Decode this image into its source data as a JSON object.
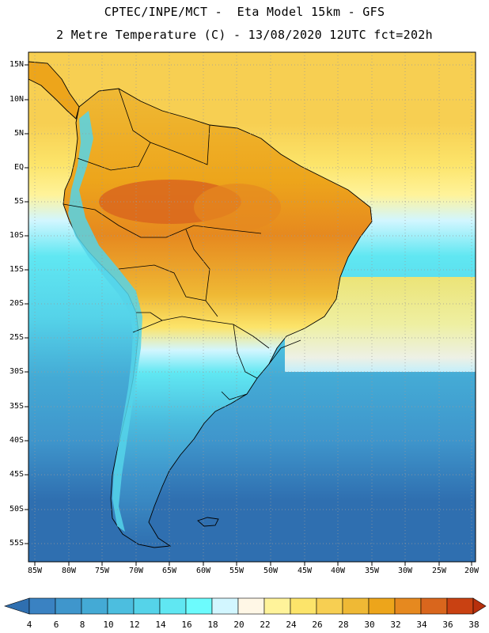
{
  "header": {
    "line1": "CPTEC/INPE/MCT -  Eta Model 15km - GFS",
    "line2": "2 Metre Temperature (C) - 13/08/2020 12UTC fct=202h"
  },
  "axes": {
    "lat_labels": [
      "15N",
      "10N",
      "5N",
      "EQ",
      "5S",
      "10S",
      "15S",
      "20S",
      "25S",
      "30S",
      "35S",
      "40S",
      "45S",
      "50S",
      "55S"
    ],
    "lon_labels": [
      "85W",
      "80W",
      "75W",
      "70W",
      "65W",
      "60W",
      "55W",
      "50W",
      "45W",
      "40W",
      "35W",
      "30W",
      "25W",
      "20W"
    ]
  },
  "colorbar": {
    "labels": [
      "4",
      "6",
      "8",
      "10",
      "12",
      "14",
      "16",
      "18",
      "20",
      "22",
      "24",
      "26",
      "28",
      "30",
      "32",
      "34",
      "36",
      "38"
    ],
    "colors": [
      "#2f6fb0",
      "#3a82c2",
      "#3f96cc",
      "#44aad5",
      "#4cbedf",
      "#55d3e9",
      "#60e7f2",
      "#6cfbfd",
      "#d2f6ff",
      "#fff7e6",
      "#fff39a",
      "#fce46a",
      "#f7cf52",
      "#efb935",
      "#eda51b",
      "#e6891f",
      "#d9661d",
      "#c94112",
      "#b7300c"
    ]
  },
  "map_data": {
    "region": "South America",
    "lat_range": [
      -57,
      17
    ],
    "lon_range": [
      -86,
      -20
    ],
    "grid": true
  }
}
